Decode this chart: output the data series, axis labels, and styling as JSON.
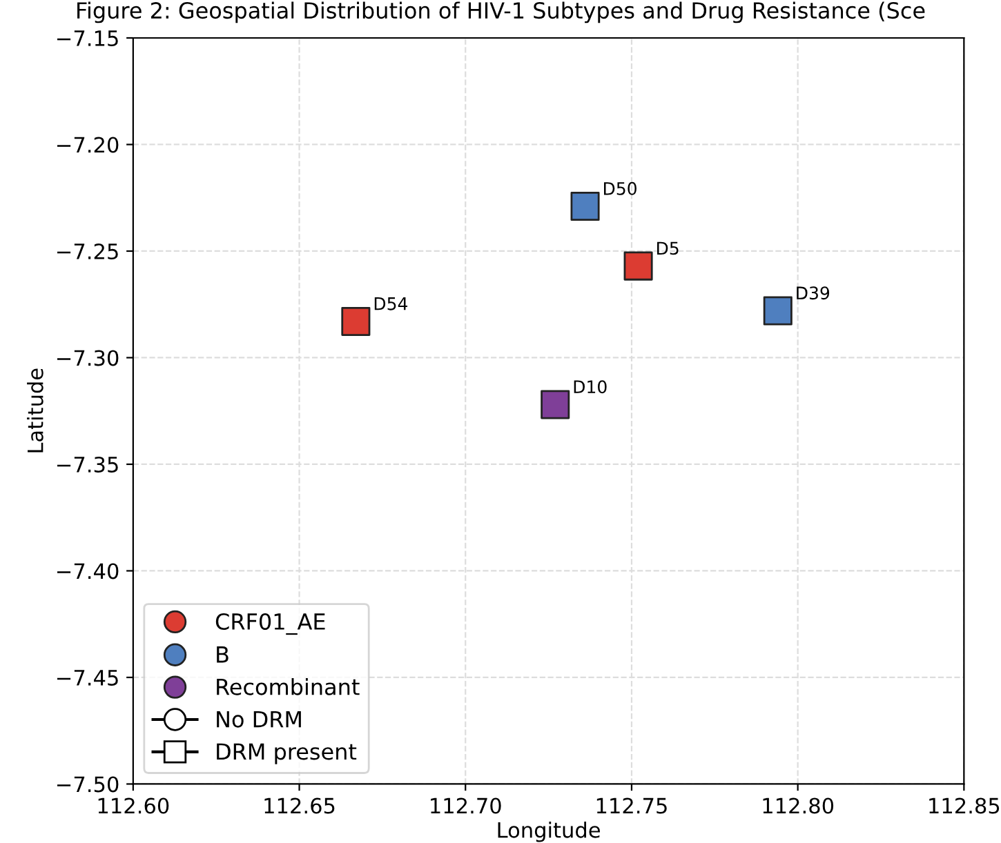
{
  "chart_data": {
    "type": "scatter",
    "title": "Figure 2: Geospatial Distribution of HIV-1 Subtypes and Drug Resistance (Sce",
    "xlabel": "Longitude",
    "ylabel": "Latitude",
    "xlim": [
      112.6,
      112.85
    ],
    "xticks": [
      {
        "value": 112.6,
        "label": "112.60"
      },
      {
        "value": 112.65,
        "label": "112.65"
      },
      {
        "value": 112.7,
        "label": "112.70"
      },
      {
        "value": 112.75,
        "label": "112.75"
      },
      {
        "value": 112.8,
        "label": "112.80"
      },
      {
        "value": 112.85,
        "label": "112.85"
      }
    ],
    "ylim": [
      -7.5,
      -7.15
    ],
    "yticks": [
      {
        "value": -7.5,
        "label": "−7.50"
      },
      {
        "value": -7.45,
        "label": "−7.45"
      },
      {
        "value": -7.4,
        "label": "−7.40"
      },
      {
        "value": -7.35,
        "label": "−7.35"
      },
      {
        "value": -7.3,
        "label": "−7.30"
      },
      {
        "value": -7.25,
        "label": "−7.25"
      },
      {
        "value": -7.2,
        "label": "−7.20"
      },
      {
        "value": -7.15,
        "label": "−7.15"
      }
    ],
    "grid": true,
    "legend": "bottom left",
    "marker": "square",
    "series": [
      {
        "name": "CRF01_AE",
        "color": "#dc3c32",
        "x": [
          112.752,
          112.667
        ],
        "values": [
          -7.257,
          -7.283
        ]
      },
      {
        "name": "B",
        "color": "#4f7fbf",
        "x": [
          112.736,
          112.794
        ],
        "values": [
          -7.229,
          -7.278
        ]
      },
      {
        "name": "Recombinant",
        "color": "#7f3f98",
        "x": [
          112.727
        ],
        "values": [
          -7.322
        ]
      },
      {
        "name": "No DRM",
        "color": "#ffffff",
        "marker": "circle"
      },
      {
        "name": "DRM present",
        "color": "#ffffff",
        "marker": "square"
      }
    ],
    "annotations": [
      {
        "text": "D5",
        "x": 112.752,
        "y": -7.257
      },
      {
        "text": "D54",
        "x": 112.667,
        "y": -7.283
      },
      {
        "text": "D50",
        "x": 112.736,
        "y": -7.229
      },
      {
        "text": "D39",
        "x": 112.794,
        "y": -7.278
      },
      {
        "text": "D10",
        "x": 112.727,
        "y": -7.322
      }
    ]
  }
}
